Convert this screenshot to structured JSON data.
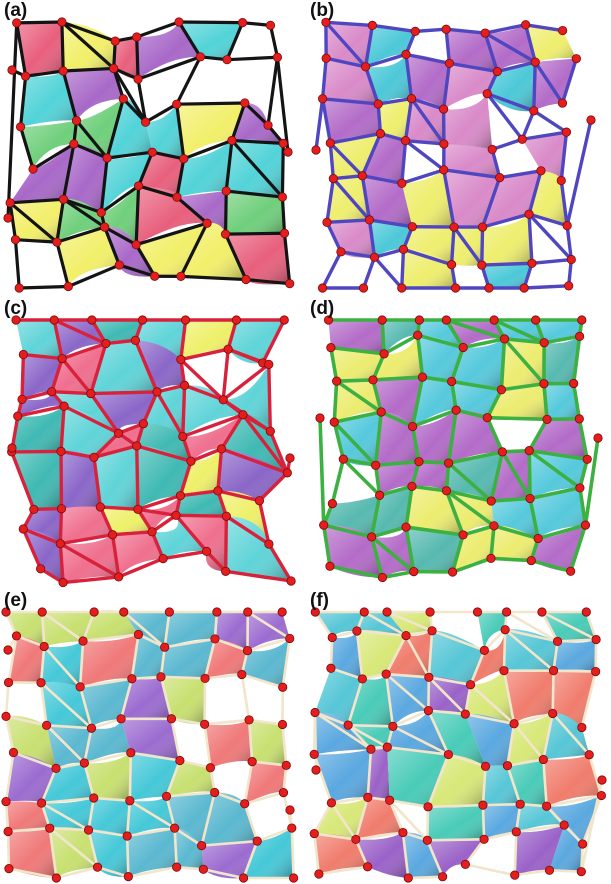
{
  "figure": {
    "panels": [
      {
        "label": "(a)",
        "edge_color": "#141414",
        "edge_style": "dark rods",
        "face_colors": [
          "#f2ef6a",
          "#e85f7c",
          "#a868c8",
          "#52d3d8",
          "#6fcf7b"
        ]
      },
      {
        "label": "(b)",
        "edge_color": "#5046c0",
        "edge_style": "blue rods",
        "face_colors": [
          "#eeee6e",
          "#b36bc8",
          "#4cc8d8",
          "#d98ac9"
        ]
      },
      {
        "label": "(c)",
        "edge_color": "#d8223c",
        "edge_style": "red rods",
        "face_colors": [
          "#5fd4d8",
          "#eef06a",
          "#ef6f8e",
          "#8a66c8",
          "#3fb9b3"
        ]
      },
      {
        "label": "(d)",
        "edge_color": "#3cb040",
        "edge_style": "green rods",
        "face_colors": [
          "#55c9dc",
          "#b36bc8",
          "#ecec70",
          "#56b9b0"
        ]
      },
      {
        "label": "(e)",
        "edge_color": "#f1e6cc",
        "edge_style": "white rods",
        "face_colors": [
          "#45c8d8",
          "#f07878",
          "#9b6bd0",
          "#c8e070",
          "#5ab8d0"
        ]
      },
      {
        "label": "(f)",
        "edge_color": "#f1e6cc",
        "edge_style": "white rods",
        "face_colors": [
          "#49cbb8",
          "#5aa8e0",
          "#9a62c8",
          "#f07c6c",
          "#d8e878",
          "#56c6d6"
        ]
      }
    ],
    "vertex_color": "#e41e1e"
  }
}
